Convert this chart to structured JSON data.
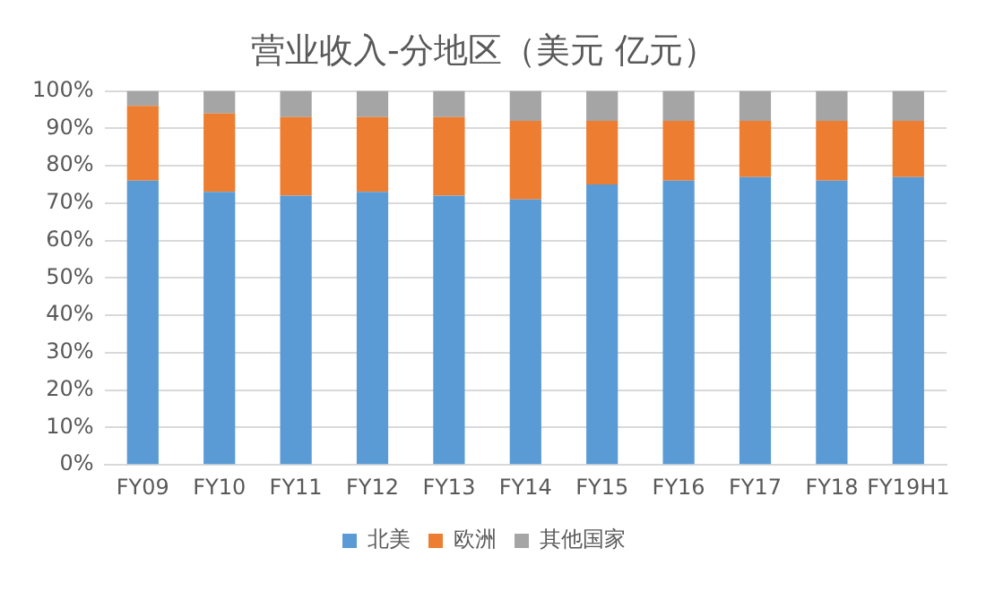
{
  "chart_data": {
    "type": "bar",
    "title": "营业收入-分地区（美元 亿元）",
    "stacked": true,
    "categories": [
      "FY09",
      "FY10",
      "FY11",
      "FY12",
      "FY13",
      "FY14",
      "FY15",
      "FY16",
      "FY17",
      "FY18",
      "FY19H1"
    ],
    "series": [
      {
        "name": "北美",
        "color": "#5b9bd5",
        "values": [
          76,
          73,
          72,
          73,
          72,
          71,
          75,
          76,
          77,
          76,
          77
        ]
      },
      {
        "name": "欧洲",
        "color": "#ed7d31",
        "values": [
          20,
          21,
          21,
          20,
          21,
          21,
          17,
          16,
          15,
          16,
          15
        ]
      },
      {
        "name": "其他国家",
        "color": "#a5a5a5",
        "values": [
          4,
          6,
          7,
          7,
          7,
          8,
          8,
          8,
          8,
          8,
          8
        ]
      }
    ],
    "ylim": [
      0,
      100
    ],
    "yticks": [
      {
        "value": 0,
        "label": "0%"
      },
      {
        "value": 10,
        "label": "10%"
      },
      {
        "value": 20,
        "label": "20%"
      },
      {
        "value": 30,
        "label": "30%"
      },
      {
        "value": 40,
        "label": "40%"
      },
      {
        "value": 50,
        "label": "50%"
      },
      {
        "value": 60,
        "label": "60%"
      },
      {
        "value": 70,
        "label": "70%"
      },
      {
        "value": 80,
        "label": "80%"
      },
      {
        "value": 90,
        "label": "90%"
      },
      {
        "value": 100,
        "label": "100%"
      }
    ],
    "grid": "y",
    "legend": "bottom"
  }
}
